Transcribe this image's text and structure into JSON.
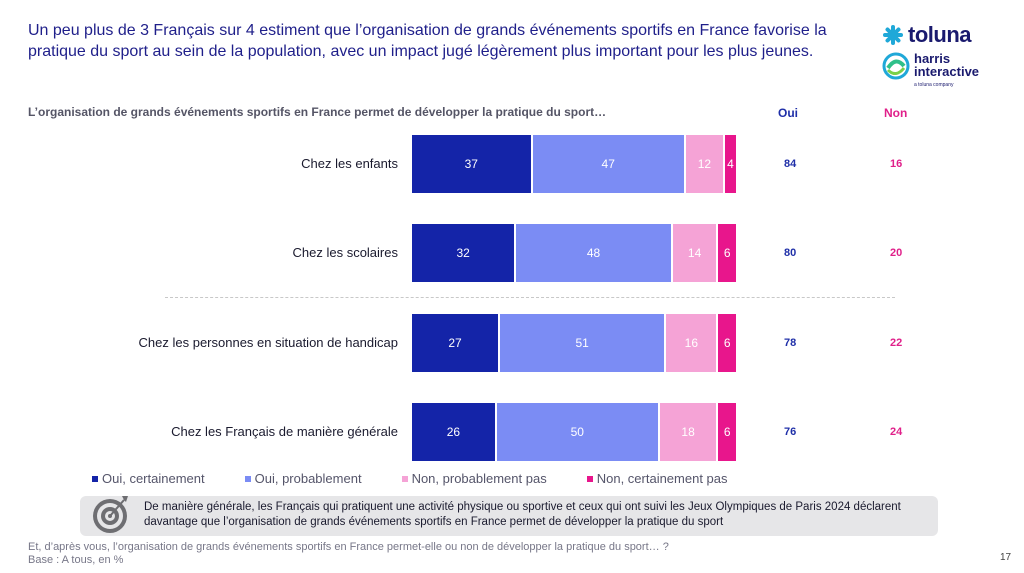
{
  "headline": "Un peu plus de 3 Français sur 4 estiment que l’organisation de grands événements sportifs en France favorise la pratique du sport au sein de la population, avec un impact jugé légèrement plus important pour les plus jeunes.",
  "logo": {
    "brand": "toluna",
    "sub": "harris interactive",
    "tagline": "a toluna company"
  },
  "question": "L’organisation de grands événements sportifs en France permet de développer la pratique du sport…",
  "columns": {
    "oui": "Oui",
    "non": "Non"
  },
  "colors": {
    "oui_cert": "#1424a8",
    "oui_prob": "#7b8cf4",
    "non_prob": "#f5a3d6",
    "non_cert": "#e8168c"
  },
  "chart_data": {
    "type": "bar",
    "orientation": "horizontal-stacked",
    "categories": [
      "Chez les enfants",
      "Chez les scolaires",
      "Chez les personnes en situation de handicap",
      "Chez les Français de manière générale"
    ],
    "series": [
      {
        "name": "Oui, certainement",
        "values": [
          37,
          32,
          27,
          26
        ]
      },
      {
        "name": "Oui, probablement",
        "values": [
          47,
          48,
          51,
          50
        ]
      },
      {
        "name": "Non, probablement pas",
        "values": [
          12,
          14,
          16,
          18
        ]
      },
      {
        "name": "Non, certainement pas",
        "values": [
          4,
          6,
          6,
          6
        ]
      }
    ],
    "totals_oui": [
      84,
      80,
      78,
      76
    ],
    "totals_non": [
      16,
      20,
      22,
      24
    ],
    "legend_position": "bottom"
  },
  "note": "De manière générale, les Français qui pratiquent une activité physique ou sportive et ceux qui ont suivi les Jeux Olympiques de Paris 2024 déclarent davantage que l’organisation de grands événements sportifs en France permet de développer la pratique du sport",
  "footnote_question": "Et, d’après vous, l’organisation de grands événements sportifs en France permet-elle ou non de développer la pratique du sport… ?",
  "footnote_base": "Base : A tous, en %",
  "page_number": "17"
}
